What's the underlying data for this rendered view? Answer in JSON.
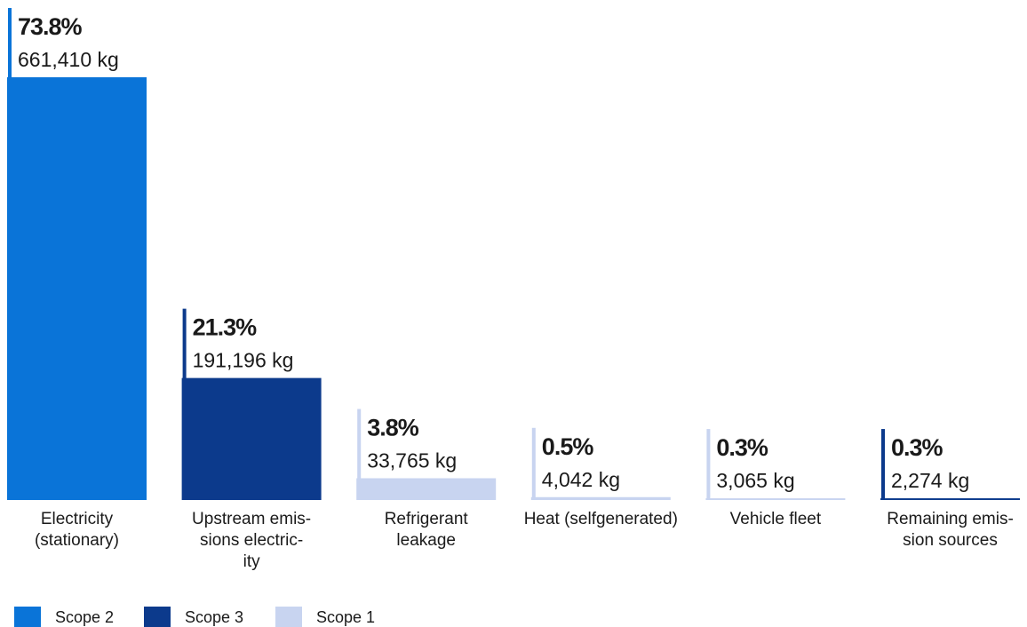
{
  "chart_data": {
    "type": "bar",
    "categories": [
      "Electricity\n(stationary)",
      "Upstream emis-\nsions electric-\nity",
      "Refrigerant\nleakage",
      "Heat (selfgenerated)",
      "Vehicle fleet",
      "Remaining emis-\nsion sources"
    ],
    "series": [
      {
        "name": "Scope 2",
        "color": "#0a74d8",
        "values": [
          73.8,
          null,
          null,
          null,
          null,
          null
        ],
        "value_labels": [
          "73.8%",
          null,
          null,
          null,
          null,
          null
        ]
      },
      {
        "name": "Scope 3",
        "color": "#0c3a8c",
        "values": [
          null,
          21.3,
          null,
          null,
          null,
          0.3
        ],
        "value_labels": [
          null,
          "21.3%",
          null,
          null,
          null,
          "0.3%"
        ]
      },
      {
        "name": "Scope 1",
        "color": "#c8d4f0",
        "values": [
          null,
          null,
          3.8,
          0.5,
          0.3,
          null
        ],
        "value_labels": [
          null,
          null,
          "3.8%",
          "0.5%",
          "0.3%",
          null
        ]
      }
    ],
    "kg": [
      661410,
      191196,
      33765,
      4042,
      3065,
      2274
    ],
    "kg_labels": [
      "661,410 kg",
      "191,196 kg",
      "33,765 kg",
      "4,042 kg",
      "3,065 kg",
      "2,274 kg"
    ]
  }
}
